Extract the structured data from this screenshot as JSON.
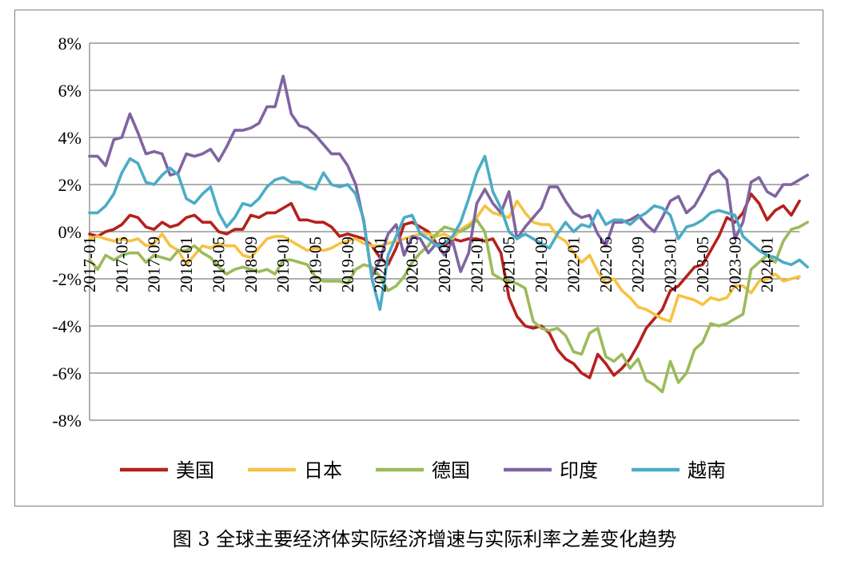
{
  "caption": "图 3  全球主要经济体实际经济增速与实际利率之差变化趋势",
  "chart_data": {
    "type": "line",
    "title": "",
    "xlabel": "",
    "ylabel": "",
    "ylim": [
      -8,
      8
    ],
    "y_ticks": [
      "8%",
      "6%",
      "4%",
      "2%",
      "0%",
      "-2%",
      "-4%",
      "-6%",
      "-8%"
    ],
    "y_tick_values": [
      8,
      6,
      4,
      2,
      0,
      -2,
      -4,
      -6,
      -8
    ],
    "x_start": "2017-01",
    "x_end": "2024-07",
    "x_tick_labels": [
      "2017-01",
      "2017-05",
      "2017-09",
      "2018-01",
      "2018-05",
      "2018-09",
      "2019-01",
      "2019-05",
      "2019-09",
      "2020-01",
      "2020-05",
      "2020-09",
      "2021-01",
      "2021-05",
      "2021-09",
      "2022-01",
      "2022-05",
      "2022-09",
      "2023-01",
      "2023-05",
      "2023-09",
      "2024-01"
    ],
    "grid": true,
    "legend_position": "bottom",
    "series": [
      {
        "name": "美国",
        "color": "#b5211c",
        "values": [
          -0.1,
          -0.2,
          0.0,
          0.1,
          0.3,
          0.7,
          0.6,
          0.2,
          0.1,
          0.4,
          0.2,
          0.3,
          0.6,
          0.7,
          0.4,
          0.4,
          0.0,
          -0.1,
          0.1,
          0.1,
          0.7,
          0.6,
          0.8,
          0.8,
          1.0,
          1.2,
          0.5,
          0.5,
          0.4,
          0.4,
          0.2,
          -0.2,
          -0.1,
          -0.2,
          -0.3,
          -0.6,
          -1.1,
          -1.4,
          -0.7,
          0.3,
          0.4,
          0.2,
          0.0,
          -0.5,
          -0.6,
          -0.3,
          -0.4,
          -0.3,
          -0.3,
          -0.4,
          -0.3,
          -0.9,
          -2.8,
          -3.6,
          -4.0,
          -4.1,
          -4.0,
          -4.3,
          -5.0,
          -5.4,
          -5.6,
          -6.0,
          -6.2,
          -5.2,
          -5.6,
          -6.1,
          -5.8,
          -5.4,
          -4.8,
          -4.1,
          -3.7,
          -3.3,
          -2.5,
          -2.3,
          -1.9,
          -1.5,
          -1.4,
          -0.8,
          -0.2,
          0.6,
          0.4,
          0.8,
          1.6,
          1.2,
          0.5,
          0.9,
          1.1,
          0.7,
          1.3
        ]
      },
      {
        "name": "日本",
        "color": "#f6c242",
        "values": [
          -0.3,
          -0.2,
          -0.3,
          -0.4,
          -0.3,
          -0.4,
          -0.3,
          -0.6,
          -0.5,
          -0.1,
          -0.6,
          -0.8,
          -1.4,
          -1.0,
          -0.6,
          -0.7,
          -0.5,
          -0.6,
          -0.6,
          -1.0,
          -1.1,
          -0.7,
          -0.3,
          -0.2,
          -0.2,
          -0.4,
          -0.6,
          -0.8,
          -0.7,
          -0.8,
          -0.7,
          -0.5,
          -0.4,
          -0.3,
          -0.5,
          -0.6,
          -0.6,
          -0.5,
          -0.4,
          -0.3,
          -0.2,
          -0.1,
          -0.1,
          -0.2,
          -0.1,
          -0.3,
          0.1,
          0.3,
          0.6,
          1.1,
          0.8,
          0.7,
          0.6,
          1.3,
          0.8,
          0.4,
          0.3,
          0.3,
          -0.2,
          -0.4,
          -0.9,
          -1.3,
          -1.0,
          -1.7,
          -2.2,
          -2.0,
          -2.5,
          -2.8,
          -3.2,
          -3.3,
          -3.5,
          -3.7,
          -3.8,
          -2.7,
          -2.8,
          -2.9,
          -3.1,
          -2.8,
          -2.9,
          -2.8,
          -2.3,
          -2.3,
          -2.6,
          -2.1,
          -2.0,
          -1.8,
          -2.1,
          -2.0,
          -1.9
        ]
      },
      {
        "name": "德国",
        "color": "#9bbb59",
        "values": [
          -1.2,
          -1.6,
          -1.0,
          -1.2,
          -1.0,
          -0.9,
          -0.9,
          -1.3,
          -1.0,
          -1.1,
          -1.2,
          -0.8,
          -0.8,
          -0.6,
          -0.9,
          -1.1,
          -1.5,
          -1.8,
          -1.6,
          -1.5,
          -1.6,
          -1.7,
          -1.6,
          -1.8,
          -1.2,
          -1.2,
          -1.3,
          -1.4,
          -1.9,
          -2.1,
          -2.1,
          -2.1,
          -2.2,
          -1.6,
          -1.4,
          -1.5,
          -1.9,
          -2.5,
          -2.3,
          -1.9,
          -1.3,
          -0.9,
          -0.6,
          -0.1,
          0.2,
          0.1,
          0.0,
          0.2,
          0.5,
          0.0,
          -1.8,
          -2.0,
          -2.1,
          -2.2,
          -2.4,
          -3.8,
          -4.1,
          -4.2,
          -4.1,
          -4.4,
          -5.1,
          -5.2,
          -4.3,
          -4.1,
          -5.3,
          -5.5,
          -5.2,
          -5.8,
          -5.4,
          -6.3,
          -6.5,
          -6.8,
          -5.5,
          -6.4,
          -6.0,
          -5.0,
          -4.7,
          -3.9,
          -4.0,
          -3.9,
          -3.7,
          -3.5,
          -1.6,
          -1.3,
          -1.0,
          -1.3,
          -0.4,
          0.1,
          0.2,
          0.4
        ]
      },
      {
        "name": "印度",
        "color": "#8064a2",
        "values": [
          3.2,
          3.2,
          2.8,
          3.9,
          4.0,
          5.0,
          4.2,
          3.3,
          3.4,
          3.3,
          2.4,
          2.5,
          3.3,
          3.2,
          3.3,
          3.5,
          3.0,
          3.6,
          4.3,
          4.3,
          4.4,
          4.6,
          5.3,
          5.3,
          6.6,
          5.0,
          4.5,
          4.4,
          4.1,
          3.7,
          3.3,
          3.3,
          2.8,
          2.0,
          0.4,
          -1.9,
          -1.2,
          -0.1,
          0.3,
          -1.0,
          -0.2,
          -0.3,
          -0.9,
          -0.5,
          -1.0,
          -0.4,
          -1.7,
          -0.9,
          1.2,
          1.8,
          1.2,
          0.8,
          1.7,
          -0.3,
          0.2,
          0.6,
          1.0,
          1.9,
          1.9,
          1.3,
          0.8,
          0.6,
          0.7,
          -0.1,
          -0.6,
          0.4,
          0.4,
          0.5,
          0.7,
          0.3,
          0.0,
          0.6,
          1.3,
          1.5,
          0.8,
          1.1,
          1.7,
          2.4,
          2.6,
          2.2,
          -0.3,
          0.4,
          2.1,
          2.3,
          1.7,
          1.5,
          2.0,
          2.0,
          2.2,
          2.4
        ]
      },
      {
        "name": "越南",
        "color": "#4bacc6",
        "values": [
          0.8,
          0.8,
          1.1,
          1.6,
          2.5,
          3.1,
          2.9,
          2.1,
          2.0,
          2.4,
          2.7,
          2.4,
          1.4,
          1.2,
          1.6,
          1.9,
          0.8,
          0.2,
          0.6,
          1.2,
          1.1,
          1.4,
          1.9,
          2.2,
          2.3,
          2.1,
          2.1,
          1.9,
          1.8,
          2.5,
          2.0,
          1.9,
          2.0,
          1.6,
          0.5,
          -2.0,
          -3.3,
          -1.0,
          -0.2,
          0.6,
          0.7,
          -0.1,
          -0.3,
          -0.6,
          -0.5,
          -0.2,
          0.4,
          1.4,
          2.5,
          3.2,
          1.7,
          1.0,
          0.0,
          -0.3,
          -0.1,
          -0.3,
          -0.5,
          -0.7,
          -0.1,
          0.4,
          0.0,
          0.3,
          0.2,
          0.9,
          0.3,
          0.5,
          0.5,
          0.3,
          0.6,
          0.8,
          1.1,
          1.0,
          0.7,
          -0.3,
          0.2,
          0.3,
          0.5,
          0.8,
          0.9,
          0.8,
          0.7,
          -0.2,
          -0.5,
          -0.8,
          -1.0,
          -1.1,
          -1.3,
          -1.4,
          -1.2,
          -1.5
        ]
      }
    ]
  }
}
